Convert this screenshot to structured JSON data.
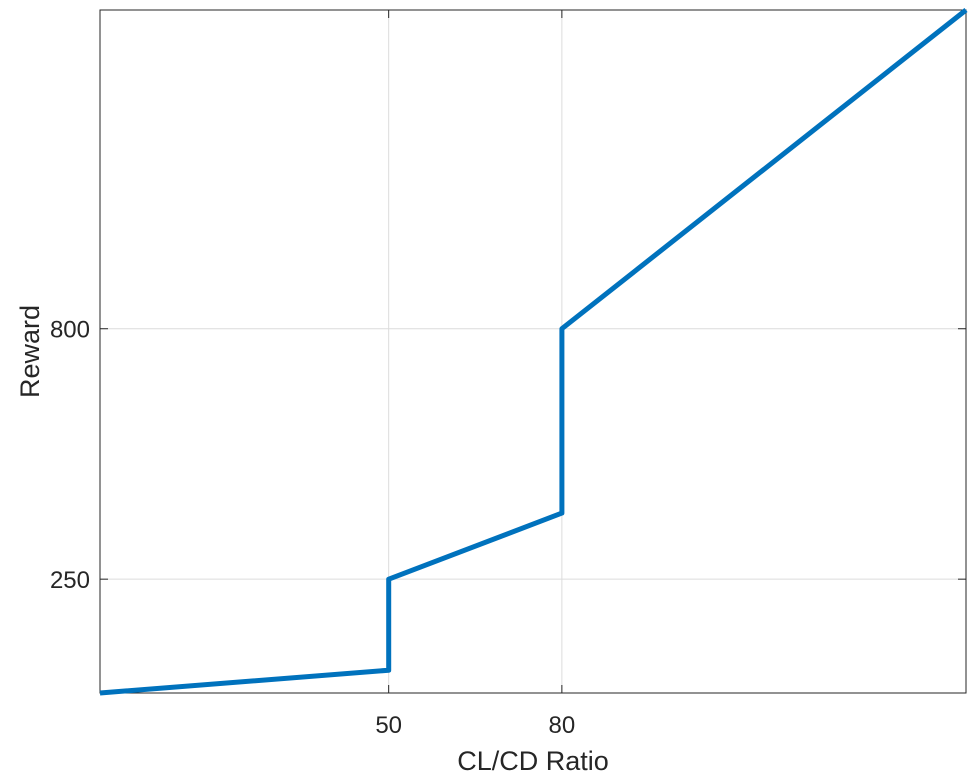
{
  "chart_data": {
    "type": "line",
    "title": "",
    "xlabel": "CL/CD Ratio",
    "ylabel": "Reward",
    "xlim": [
      0,
      150
    ],
    "ylim": [
      0,
      1500
    ],
    "xticks": [
      50,
      80
    ],
    "yticks": [
      250,
      800
    ],
    "grid": true,
    "series": [
      {
        "name": "",
        "color": "#0072BD",
        "x": [
          0,
          50,
          50,
          80,
          80,
          150
        ],
        "y": [
          0,
          50,
          250,
          395,
          800,
          1500
        ]
      }
    ]
  }
}
